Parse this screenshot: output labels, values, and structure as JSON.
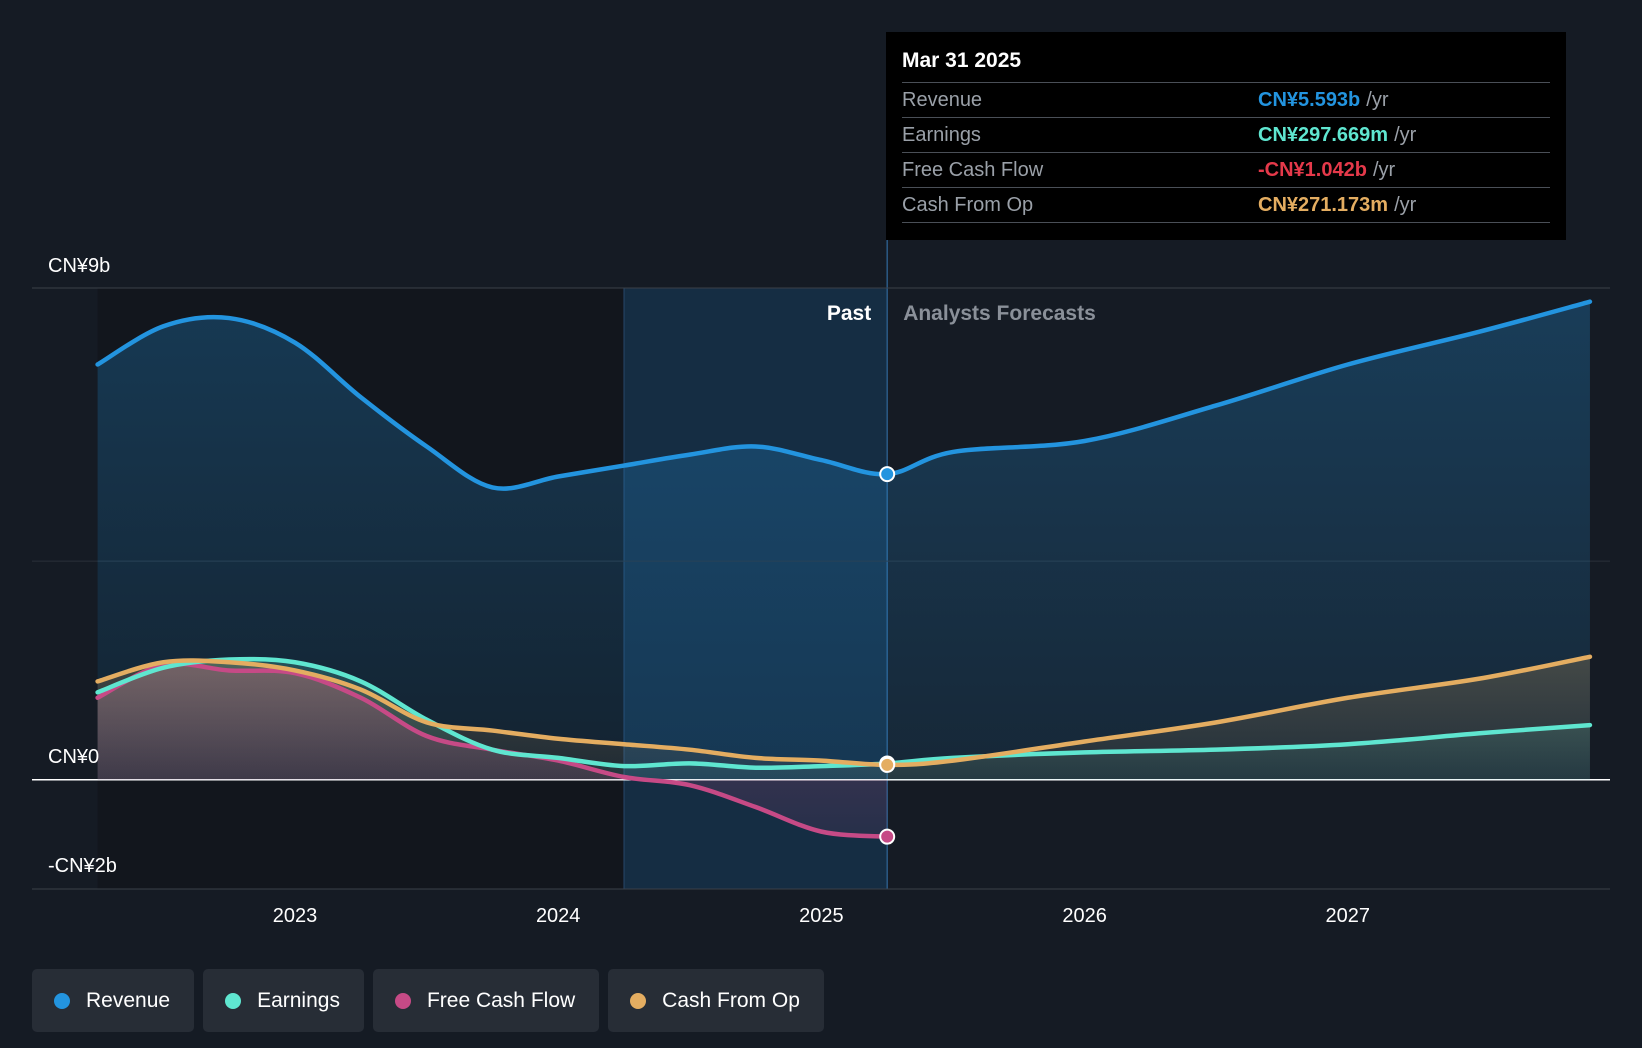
{
  "chart_data": {
    "type": "area",
    "y_axis": {
      "top_label": "CN¥9b",
      "zero_label": "CN¥0",
      "bottom_label": "-CN¥2b",
      "ylim": [
        -2,
        9
      ],
      "unit": "CN¥ billions"
    },
    "x_ticks": [
      "2023",
      "2024",
      "2025",
      "2026",
      "2027"
    ],
    "xlim": [
      2022.25,
      2027.92
    ],
    "past_label": "Past",
    "forecast_label": "Analysts Forecasts",
    "past_end": 2025.25,
    "highlight_start": 2024.25,
    "series": [
      {
        "name": "Revenue",
        "color": "#2394df",
        "points": [
          [
            2022.25,
            7.6
          ],
          [
            2022.5,
            8.3
          ],
          [
            2022.75,
            8.45
          ],
          [
            2023.0,
            8.0
          ],
          [
            2023.25,
            7.0
          ],
          [
            2023.5,
            6.1
          ],
          [
            2023.75,
            5.35
          ],
          [
            2024.0,
            5.55
          ],
          [
            2024.25,
            5.75
          ],
          [
            2024.5,
            5.95
          ],
          [
            2024.75,
            6.1
          ],
          [
            2025.0,
            5.85
          ],
          [
            2025.25,
            5.593
          ],
          [
            2025.5,
            6.0
          ],
          [
            2026.0,
            6.2
          ],
          [
            2026.5,
            6.85
          ],
          [
            2027.0,
            7.6
          ],
          [
            2027.5,
            8.2
          ],
          [
            2027.92,
            8.75
          ]
        ]
      },
      {
        "name": "Earnings",
        "color": "#5fe6d0",
        "points": [
          [
            2022.25,
            1.6
          ],
          [
            2022.5,
            2.05
          ],
          [
            2022.75,
            2.2
          ],
          [
            2023.0,
            2.15
          ],
          [
            2023.25,
            1.8
          ],
          [
            2023.5,
            1.1
          ],
          [
            2023.75,
            0.55
          ],
          [
            2024.0,
            0.4
          ],
          [
            2024.25,
            0.25
          ],
          [
            2024.5,
            0.3
          ],
          [
            2024.75,
            0.22
          ],
          [
            2025.0,
            0.25
          ],
          [
            2025.25,
            0.297669
          ],
          [
            2025.5,
            0.4
          ],
          [
            2026.0,
            0.5
          ],
          [
            2026.5,
            0.55
          ],
          [
            2027.0,
            0.65
          ],
          [
            2027.5,
            0.85
          ],
          [
            2027.92,
            1.0
          ]
        ]
      },
      {
        "name": "Free Cash Flow",
        "color": "#c64a86",
        "points": [
          [
            2022.25,
            1.5
          ],
          [
            2022.5,
            2.1
          ],
          [
            2022.75,
            2.0
          ],
          [
            2023.0,
            1.95
          ],
          [
            2023.25,
            1.5
          ],
          [
            2023.5,
            0.8
          ],
          [
            2023.75,
            0.55
          ],
          [
            2024.0,
            0.35
          ],
          [
            2024.25,
            0.05
          ],
          [
            2024.5,
            -0.1
          ],
          [
            2024.75,
            -0.5
          ],
          [
            2025.0,
            -0.95
          ],
          [
            2025.25,
            -1.042
          ]
        ]
      },
      {
        "name": "Cash From Op",
        "color": "#e4ad61",
        "points": [
          [
            2022.25,
            1.8
          ],
          [
            2022.5,
            2.15
          ],
          [
            2022.75,
            2.15
          ],
          [
            2023.0,
            2.0
          ],
          [
            2023.25,
            1.65
          ],
          [
            2023.5,
            1.05
          ],
          [
            2023.75,
            0.9
          ],
          [
            2024.0,
            0.75
          ],
          [
            2024.25,
            0.65
          ],
          [
            2024.5,
            0.55
          ],
          [
            2024.75,
            0.4
          ],
          [
            2025.0,
            0.35
          ],
          [
            2025.25,
            0.271173
          ],
          [
            2025.5,
            0.35
          ],
          [
            2026.0,
            0.7
          ],
          [
            2026.5,
            1.05
          ],
          [
            2027.0,
            1.5
          ],
          [
            2027.5,
            1.85
          ],
          [
            2027.92,
            2.25
          ]
        ]
      }
    ]
  },
  "tooltip": {
    "date": "Mar 31 2025",
    "rows": [
      {
        "label": "Revenue",
        "value": "CN¥5.593b",
        "unit": "/yr",
        "color": "#2394df"
      },
      {
        "label": "Earnings",
        "value": "CN¥297.669m",
        "unit": "/yr",
        "color": "#5fe6d0"
      },
      {
        "label": "Free Cash Flow",
        "value": "-CN¥1.042b",
        "unit": "/yr",
        "color": "#e5394a"
      },
      {
        "label": "Cash From Op",
        "value": "CN¥271.173m",
        "unit": "/yr",
        "color": "#e4ad61"
      }
    ]
  },
  "legend": [
    {
      "label": "Revenue",
      "color": "#2394df"
    },
    {
      "label": "Earnings",
      "color": "#5fe6d0"
    },
    {
      "label": "Free Cash Flow",
      "color": "#c64a86"
    },
    {
      "label": "Cash From Op",
      "color": "#e4ad61"
    }
  ]
}
